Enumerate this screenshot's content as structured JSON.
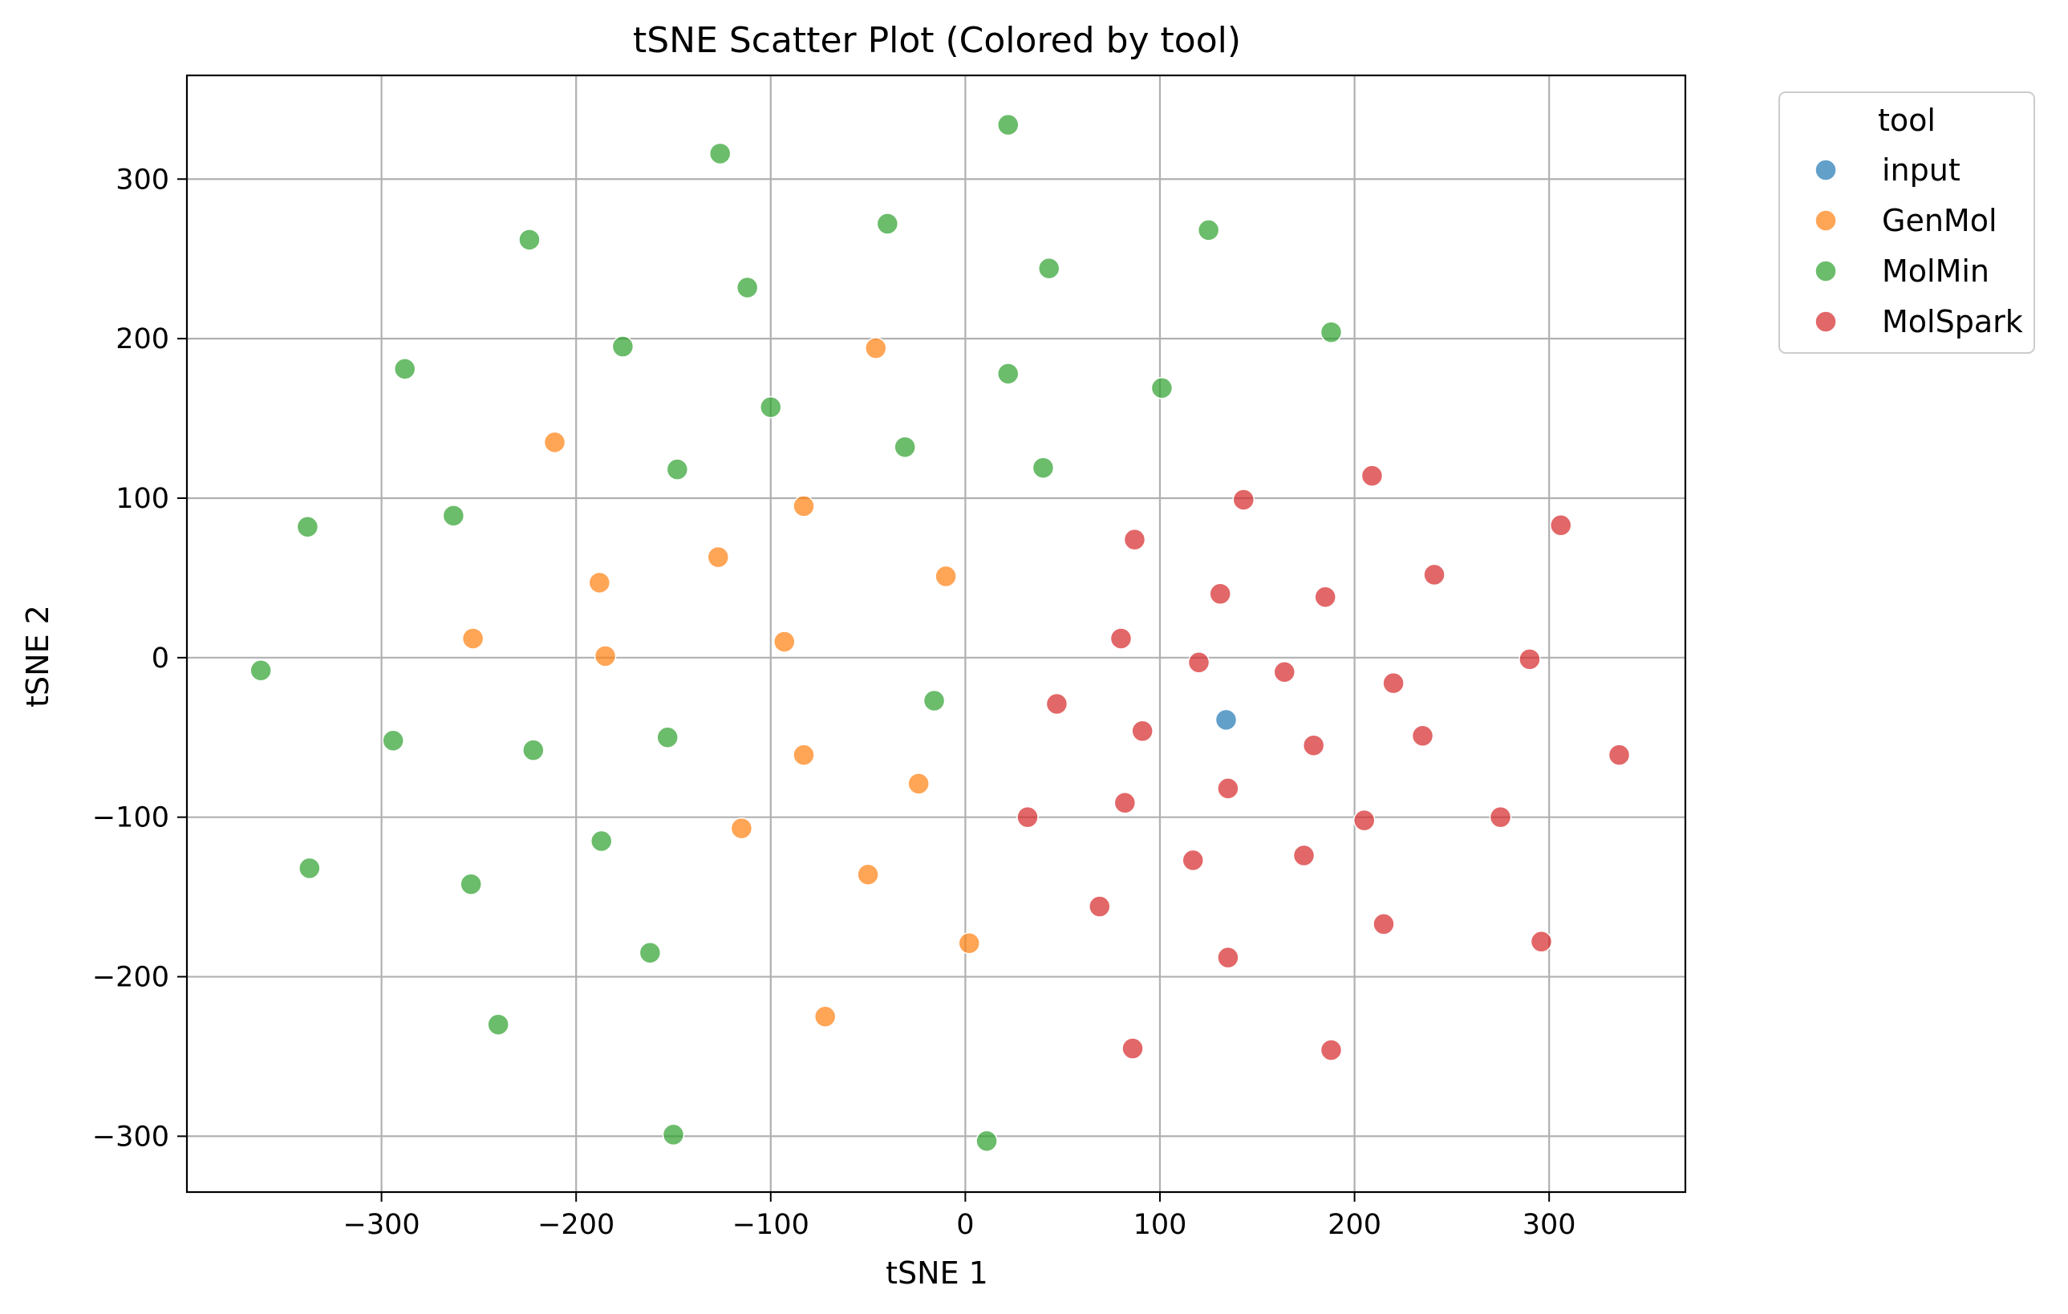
{
  "chart_data": {
    "type": "scatter",
    "title": "tSNE Scatter Plot (Colored by tool)",
    "xlabel": "tSNE 1",
    "ylabel": "tSNE 2",
    "xlim": [
      -400,
      370
    ],
    "ylim": [
      -335,
      365
    ],
    "xticks": [
      -300,
      -200,
      -100,
      0,
      100,
      200,
      300
    ],
    "yticks": [
      -300,
      -200,
      -100,
      0,
      100,
      200,
      300
    ],
    "grid": true,
    "legend": {
      "title": "tool",
      "placement": "outside-top-right"
    },
    "series": [
      {
        "name": "input",
        "color": "#1f77b4",
        "points": [
          [
            134,
            -39
          ]
        ]
      },
      {
        "name": "GenMol",
        "color": "#ff7f0e",
        "points": [
          [
            -46,
            194
          ],
          [
            -211,
            135
          ],
          [
            -83,
            95
          ],
          [
            -127,
            63
          ],
          [
            -188,
            47
          ],
          [
            -10,
            51
          ],
          [
            -253,
            12
          ],
          [
            -185,
            1
          ],
          [
            -93,
            10
          ],
          [
            -83,
            -61
          ],
          [
            -24,
            -79
          ],
          [
            -115,
            -107
          ],
          [
            -50,
            -136
          ],
          [
            2,
            -179
          ],
          [
            -72,
            -225
          ]
        ]
      },
      {
        "name": "MolMin",
        "color": "#2ca02c",
        "points": [
          [
            22,
            334
          ],
          [
            -126,
            316
          ],
          [
            -40,
            272
          ],
          [
            125,
            268
          ],
          [
            -224,
            262
          ],
          [
            43,
            244
          ],
          [
            -112,
            232
          ],
          [
            188,
            204
          ],
          [
            -288,
            181
          ],
          [
            -176,
            195
          ],
          [
            22,
            178
          ],
          [
            101,
            169
          ],
          [
            -100,
            157
          ],
          [
            -31,
            132
          ],
          [
            -148,
            118
          ],
          [
            40,
            119
          ],
          [
            -263,
            89
          ],
          [
            -338,
            82
          ],
          [
            -362,
            -8
          ],
          [
            -16,
            -27
          ],
          [
            -294,
            -52
          ],
          [
            -153,
            -50
          ],
          [
            -222,
            -58
          ],
          [
            -187,
            -115
          ],
          [
            -337,
            -132
          ],
          [
            -254,
            -142
          ],
          [
            -162,
            -185
          ],
          [
            -240,
            -230
          ],
          [
            -150,
            -299
          ],
          [
            11,
            -303
          ]
        ]
      },
      {
        "name": "MolSpark",
        "color": "#d62728",
        "points": [
          [
            209,
            114
          ],
          [
            143,
            99
          ],
          [
            306,
            83
          ],
          [
            87,
            74
          ],
          [
            241,
            52
          ],
          [
            131,
            40
          ],
          [
            185,
            38
          ],
          [
            80,
            12
          ],
          [
            120,
            -3
          ],
          [
            290,
            -1
          ],
          [
            164,
            -9
          ],
          [
            220,
            -16
          ],
          [
            47,
            -29
          ],
          [
            91,
            -46
          ],
          [
            235,
            -49
          ],
          [
            179,
            -55
          ],
          [
            336,
            -61
          ],
          [
            135,
            -82
          ],
          [
            82,
            -91
          ],
          [
            32,
            -100
          ],
          [
            205,
            -102
          ],
          [
            275,
            -100
          ],
          [
            174,
            -124
          ],
          [
            117,
            -127
          ],
          [
            69,
            -156
          ],
          [
            215,
            -167
          ],
          [
            296,
            -178
          ],
          [
            135,
            -188
          ],
          [
            86,
            -245
          ],
          [
            188,
            -246
          ]
        ]
      }
    ]
  }
}
